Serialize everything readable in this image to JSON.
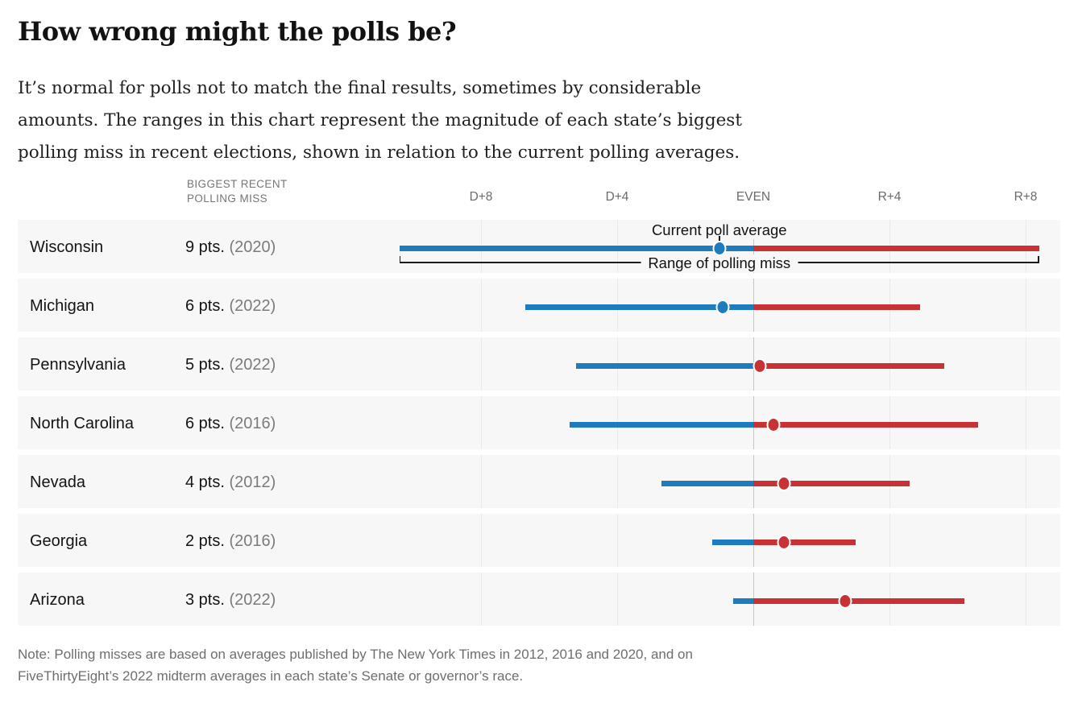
{
  "title": "How wrong might the polls be?",
  "intro": {
    "lines": [
      "It’s normal for polls not to match the final results, sometimes by considerable",
      "amounts. The ranges in this chart represent the magnitude of each state’s biggest",
      "polling miss in recent elections, shown in relation to the current polling averages."
    ]
  },
  "column_header": "BIGGEST RECENT\nPOLLING MISS",
  "annotations": {
    "poll_average_label": "Current poll average",
    "range_label": "Range of polling miss"
  },
  "note": {
    "lines": [
      "Note: Polling misses are based on averages published by The New York Times in 2012, 2016 and 2020, and on",
      "FiveThirtyEight’s 2022 midterm averages in each state’s Senate or governor’s race."
    ]
  },
  "colors": {
    "democrat_blue": "#1e7cbe",
    "republican_red": "#c93235",
    "row_background": "#f7f7f7",
    "gridline": "#e9e9e9",
    "even_gridline": "#c6c6c6"
  },
  "chart_data": {
    "type": "range-dot",
    "title": "How wrong might the polls be?",
    "x_axis": {
      "tick_labels": [
        "D+8",
        "D+4",
        "EVEN",
        "R+4",
        "R+8"
      ],
      "tick_values": [
        -8,
        -4,
        0,
        4,
        8
      ],
      "xlim": [
        -10.8,
        9.0
      ],
      "note": "negative = Democratic lead, positive = Republican lead"
    },
    "legend": {
      "dot": "Current poll average",
      "bar": "Range of polling miss"
    },
    "rows": [
      {
        "state": "Wisconsin",
        "miss": "9 pts.",
        "year": "(2020)",
        "poll_avg": -1.0,
        "range_low": -10.4,
        "range_high": 8.4,
        "annotate": true
      },
      {
        "state": "Michigan",
        "miss": "6 pts.",
        "year": "(2022)",
        "poll_avg": -0.9,
        "range_low": -6.7,
        "range_high": 4.9,
        "annotate": false
      },
      {
        "state": "Pennsylvania",
        "miss": "5 pts.",
        "year": "(2022)",
        "poll_avg": 0.2,
        "range_low": -5.2,
        "range_high": 5.6,
        "annotate": false
      },
      {
        "state": "North Carolina",
        "miss": "6 pts.",
        "year": "(2016)",
        "poll_avg": 0.6,
        "range_low": -5.4,
        "range_high": 6.6,
        "annotate": false
      },
      {
        "state": "Nevada",
        "miss": "4 pts.",
        "year": "(2012)",
        "poll_avg": 0.9,
        "range_low": -2.7,
        "range_high": 4.6,
        "annotate": false
      },
      {
        "state": "Georgia",
        "miss": "2 pts.",
        "year": "(2016)",
        "poll_avg": 0.9,
        "range_low": -1.2,
        "range_high": 3.0,
        "annotate": false
      },
      {
        "state": "Arizona",
        "miss": "3 pts.",
        "year": "(2022)",
        "poll_avg": 2.7,
        "range_low": -0.6,
        "range_high": 6.2,
        "annotate": false
      }
    ]
  }
}
